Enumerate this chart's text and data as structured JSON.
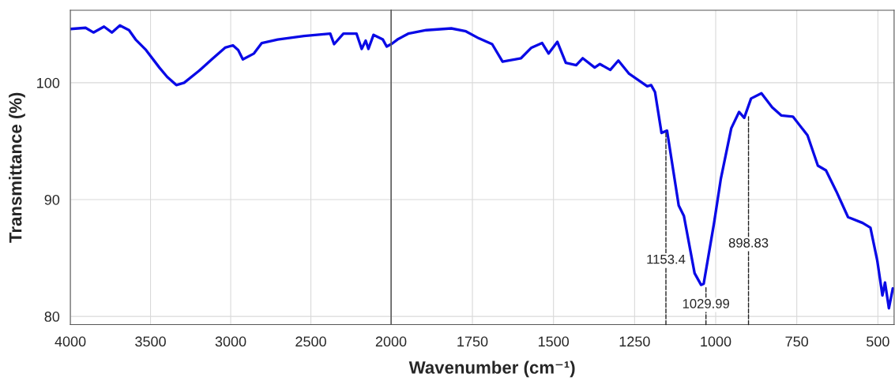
{
  "chart_data": [
    {
      "type": "line",
      "xlabel": "Wavenumber (cm⁻¹)",
      "ylabel": "Transmittance (%)",
      "xlim": [
        4000,
        2000
      ],
      "xticks": [
        4000,
        3500,
        3000,
        2500,
        2000
      ],
      "ylim": [
        79.3,
        106.2
      ],
      "yticks": [
        80,
        90,
        100
      ],
      "grid": true,
      "series": [
        {
          "color": "#0a0ae6",
          "x": [
            4000,
            3905,
            3856,
            3790,
            3741,
            3691,
            3634,
            3593,
            3528,
            3445,
            3396,
            3339,
            3290,
            3199,
            3118,
            3035,
            2986,
            2953,
            2924,
            2855,
            2806,
            2707,
            2543,
            2379,
            2355,
            2297,
            2215,
            2183,
            2158,
            2141,
            2109,
            2051,
            2027,
            2000
          ],
          "values": [
            104.6,
            104.7,
            104.3,
            104.8,
            104.3,
            104.9,
            104.5,
            103.7,
            102.8,
            101.3,
            100.5,
            99.8,
            100.0,
            101.0,
            102.0,
            103.0,
            103.2,
            102.8,
            102.0,
            102.5,
            103.4,
            103.7,
            104.0,
            104.2,
            103.3,
            104.2,
            104.2,
            102.9,
            103.6,
            102.9,
            104.1,
            103.7,
            103.1,
            103.3
          ]
        }
      ]
    },
    {
      "type": "line",
      "xlim": [
        2000,
        450
      ],
      "xticks": [
        {
          "value": 2000,
          "label": null
        },
        1750,
        1500,
        1250,
        1000,
        750,
        500
      ],
      "ylim": [
        79.3,
        106.2
      ],
      "yticks": [
        80,
        90,
        100
      ],
      "grid": true,
      "tick_labels": "x",
      "series": [
        {
          "color": "#0a0ae6",
          "x": [
            2000,
            1981,
            1948,
            1892,
            1815,
            1770,
            1730,
            1689,
            1657,
            1600,
            1568,
            1535,
            1515,
            1488,
            1462,
            1430,
            1410,
            1373,
            1357,
            1325,
            1300,
            1268,
            1211,
            1199,
            1187,
            1167,
            1150,
            1114,
            1098,
            1065,
            1045,
            1037,
            1005,
            984,
            952,
            928,
            912,
            891,
            859,
            826,
            798,
            762,
            717,
            685,
            660,
            628,
            592,
            547,
            523,
            502,
            486,
            478,
            466,
            454
          ],
          "values": [
            103.3,
            103.7,
            104.2,
            104.5,
            104.65,
            104.4,
            103.8,
            103.3,
            101.8,
            102.1,
            103.0,
            103.4,
            102.5,
            103.5,
            101.7,
            101.5,
            102.1,
            101.3,
            101.6,
            101.1,
            101.9,
            100.8,
            99.7,
            99.8,
            99.2,
            95.7,
            95.9,
            89.5,
            88.6,
            83.7,
            82.7,
            82.8,
            88.0,
            91.8,
            96.1,
            97.5,
            97.0,
            98.65,
            99.1,
            97.9,
            97.2,
            97.1,
            95.5,
            92.9,
            92.5,
            90.7,
            88.5,
            88.0,
            87.6,
            84.8,
            81.8,
            82.9,
            80.7,
            82.4
          ]
        }
      ],
      "annotations": [
        {
          "text": "1153.4",
          "x": 1153.4,
          "y": 95.8
        },
        {
          "text": "1029.99",
          "x": 1029.99,
          "y": 82.5
        },
        {
          "text": "898.83",
          "x": 898.83,
          "y": 97.2
        }
      ]
    }
  ]
}
